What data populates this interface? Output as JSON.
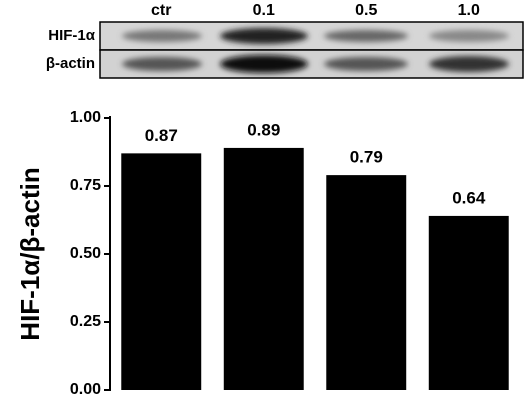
{
  "chart_data": {
    "type": "bar",
    "blot_rows": [
      "HIF-1α",
      "β-actin"
    ],
    "categories": [
      "ctr",
      "0.1",
      "0.5",
      "1.0"
    ],
    "values": [
      0.87,
      0.89,
      0.79,
      0.64
    ],
    "color": "#000000",
    "ylabel": "HIF-1α/β-actin",
    "ylim": [
      0,
      1
    ],
    "yticks": [
      {
        "value": 0,
        "label": "0.00"
      },
      {
        "value": 0.25,
        "label": "0.25"
      },
      {
        "value": 0.5,
        "label": "0.50"
      },
      {
        "value": 0.75,
        "label": "0.75"
      },
      {
        "value": 1,
        "label": "1.00"
      }
    ]
  }
}
